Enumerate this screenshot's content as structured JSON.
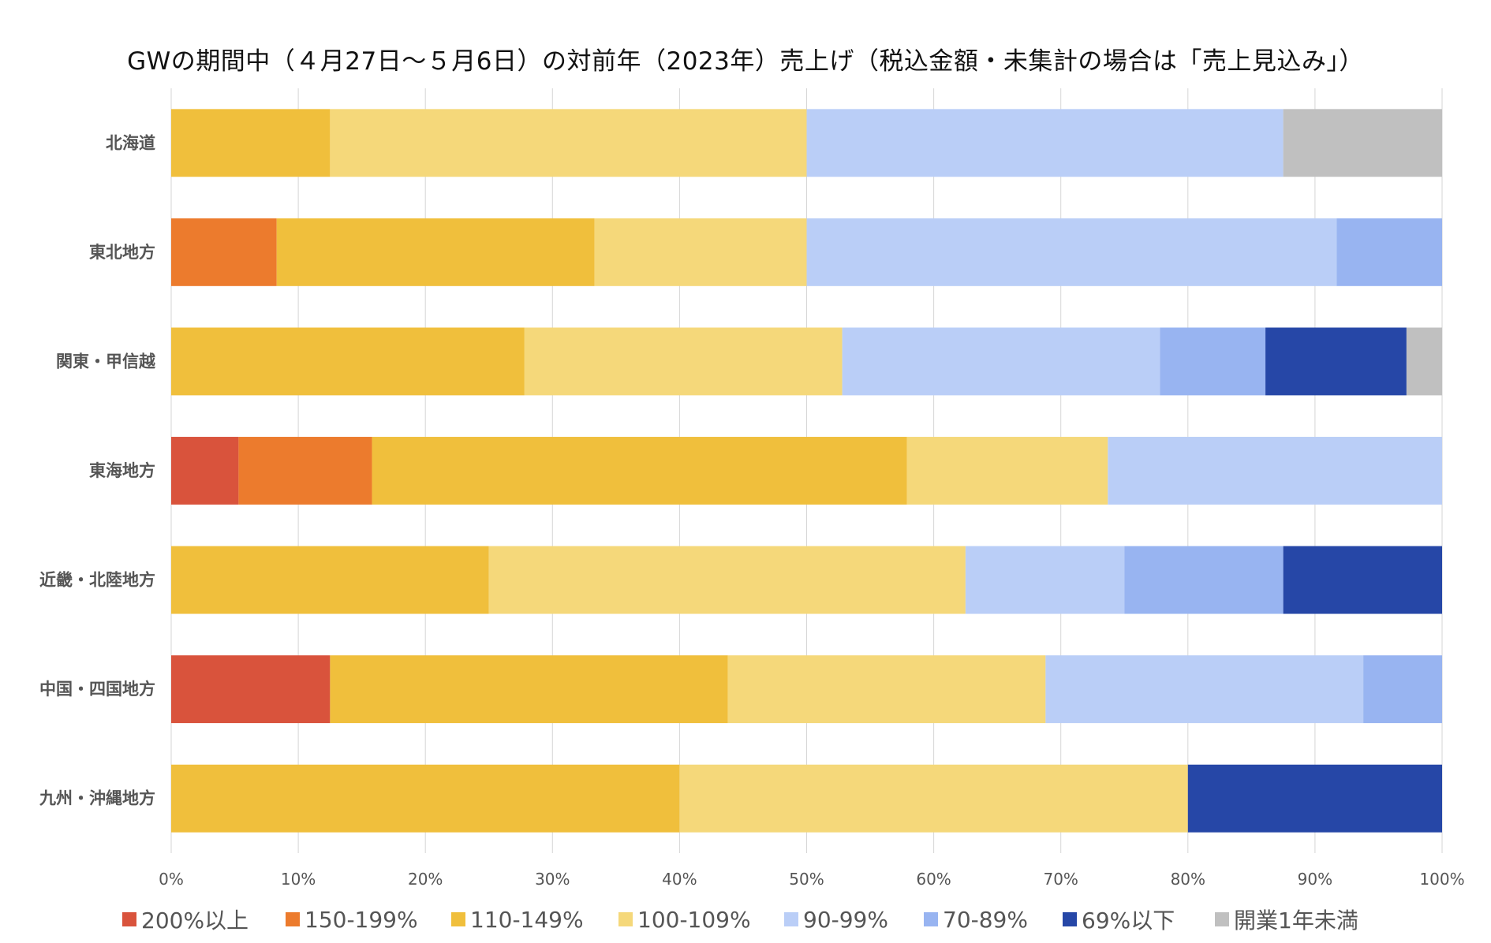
{
  "chart_data": {
    "type": "bar",
    "orientation": "horizontal",
    "stacked": "percent",
    "title": "GWの期間中（４月27日〜５月6日）の対前年（2023年）売上げ（税込金額・未集計の場合は「売上見込み」）",
    "categories": [
      "北海道",
      "東北地方",
      "関東・甲信越",
      "東海地方",
      "近畿・北陸地方",
      "中国・四国地方",
      "九州・沖縄地方"
    ],
    "series": [
      {
        "name": "200%以上",
        "color": "#d9533c",
        "values": [
          0,
          0,
          0,
          5.3,
          0,
          12.5,
          0
        ]
      },
      {
        "name": "150-199%",
        "color": "#ec7b2d",
        "values": [
          0,
          8.3,
          0,
          10.5,
          0,
          0,
          0
        ]
      },
      {
        "name": "110-149%",
        "color": "#f0bf3c",
        "values": [
          12.5,
          25.0,
          27.8,
          42.1,
          25.0,
          31.3,
          40.0
        ]
      },
      {
        "name": "100-109%",
        "color": "#f5d87a",
        "values": [
          37.5,
          16.7,
          25.0,
          15.8,
          37.5,
          25.0,
          40.0
        ]
      },
      {
        "name": "90-99%",
        "color": "#bacef7",
        "values": [
          37.5,
          41.7,
          25.0,
          26.3,
          12.5,
          25.0,
          0
        ]
      },
      {
        "name": "70-89%",
        "color": "#98b4f1",
        "values": [
          0,
          8.3,
          8.3,
          0,
          12.5,
          6.2,
          0
        ]
      },
      {
        "name": "69%以下",
        "color": "#2647a7",
        "values": [
          0,
          0,
          11.1,
          0,
          12.5,
          0,
          20.0
        ]
      },
      {
        "name": "開業1年未満",
        "color": "#c0c0c0",
        "values": [
          12.5,
          0,
          2.8,
          0,
          0,
          0,
          0
        ]
      }
    ],
    "xlim": [
      0,
      100
    ],
    "xticks": [
      "0%",
      "10%",
      "20%",
      "30%",
      "40%",
      "50%",
      "60%",
      "70%",
      "80%",
      "90%",
      "100%"
    ],
    "grid": true,
    "legend_position": "bottom"
  }
}
